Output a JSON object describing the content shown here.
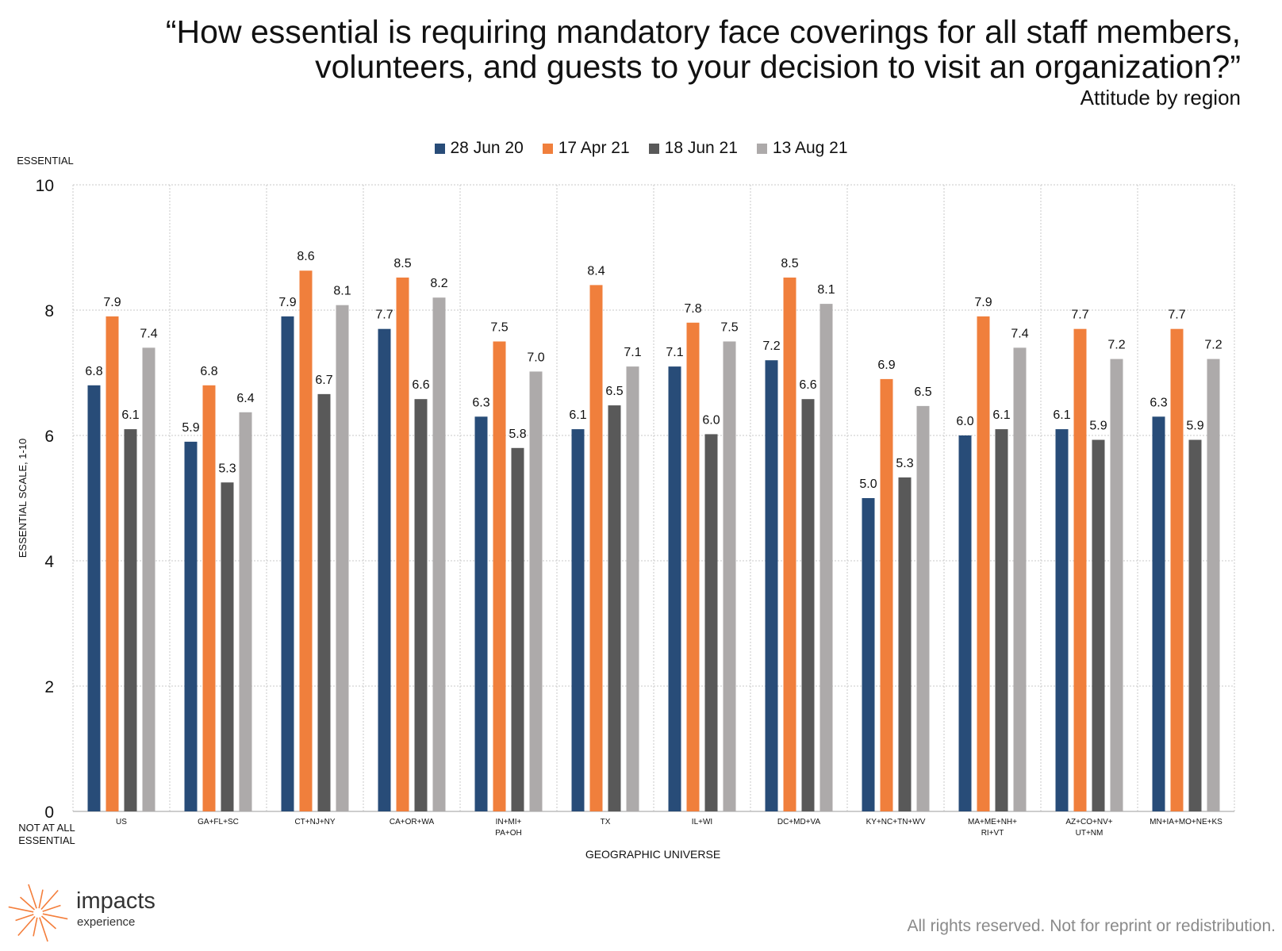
{
  "title": {
    "line1": "“How essential is requiring mandatory face coverings for all staff members,",
    "line2": "volunteers, and guests to your decision to visit an organization?”",
    "subtitle": "Attitude by region"
  },
  "footer": "All rights reserved. Not for reprint or redistribution.",
  "logo": {
    "word1": "impacts",
    "word2": "experience",
    "color": "#F47E3B"
  },
  "chart_data": {
    "type": "bar",
    "xlabel": "GEOGRAPHIC UNIVERSE",
    "ylabel": "ESSENTIAL SCALE, 1-10",
    "ytop_label": "ESSENTIAL",
    "ybottom_label": [
      "NOT AT ALL",
      "ESSENTIAL"
    ],
    "ylim": [
      0,
      10
    ],
    "yticks": [
      "0",
      "2",
      "4",
      "6",
      "8",
      "10"
    ],
    "grid": true,
    "legend_position": "top",
    "categories": [
      [
        "US"
      ],
      [
        "GA+FL+SC"
      ],
      [
        "CT+NJ+NY"
      ],
      [
        "CA+OR+WA"
      ],
      [
        "IN+MI+",
        "PA+OH"
      ],
      [
        "TX"
      ],
      [
        "IL+WI"
      ],
      [
        "DC+MD+VA"
      ],
      [
        "KY+NC+TN+WV"
      ],
      [
        "MA+ME+NH+",
        "RI+VT"
      ],
      [
        "AZ+CO+NV+",
        "UT+NM"
      ],
      [
        "MN+IA+MO+NE+KS"
      ]
    ],
    "series": [
      {
        "name": "28 Jun 20",
        "color": "#284C78",
        "values": [
          6.8,
          5.9,
          7.9,
          7.7,
          6.3,
          6.1,
          7.1,
          7.2,
          5.0,
          6.0,
          6.1,
          6.3
        ],
        "labels": [
          "6.8",
          "5.9",
          "7.9",
          "7.7",
          "6.3",
          "6.1",
          "7.1",
          "7.2",
          "5.0",
          "6.0",
          "6.1",
          "6.3"
        ]
      },
      {
        "name": "17 Apr 21",
        "color": "#F07F3C",
        "values": [
          7.9,
          6.8,
          8.63,
          8.52,
          7.5,
          8.4,
          7.8,
          8.52,
          6.9,
          7.9,
          7.7,
          7.7
        ],
        "labels": [
          "7.9",
          "6.8",
          "8.6",
          "8.5",
          "7.5",
          "8.4",
          "7.8",
          "8.5",
          "6.9",
          "7.9",
          "7.7",
          "7.7"
        ]
      },
      {
        "name": "18 Jun 21",
        "color": "#595959",
        "values": [
          6.1,
          5.25,
          6.66,
          6.58,
          5.8,
          6.48,
          6.02,
          6.58,
          5.33,
          6.1,
          5.93,
          5.93
        ],
        "labels": [
          "6.1",
          "5.3",
          "6.7",
          "6.6",
          "5.8",
          "6.5",
          "6.0",
          "6.6",
          "5.3",
          "6.1",
          "5.9",
          "5.9"
        ]
      },
      {
        "name": "13 Aug 21",
        "color": "#ADAAAA",
        "values": [
          7.4,
          6.37,
          8.08,
          8.2,
          7.02,
          7.1,
          7.5,
          8.1,
          6.47,
          7.4,
          7.22,
          7.22
        ],
        "labels": [
          "7.4",
          "6.4",
          "8.1",
          "8.2",
          "7.0",
          "7.1",
          "7.5",
          "8.1",
          "6.5",
          "7.4",
          "7.2",
          "7.2"
        ]
      }
    ]
  }
}
